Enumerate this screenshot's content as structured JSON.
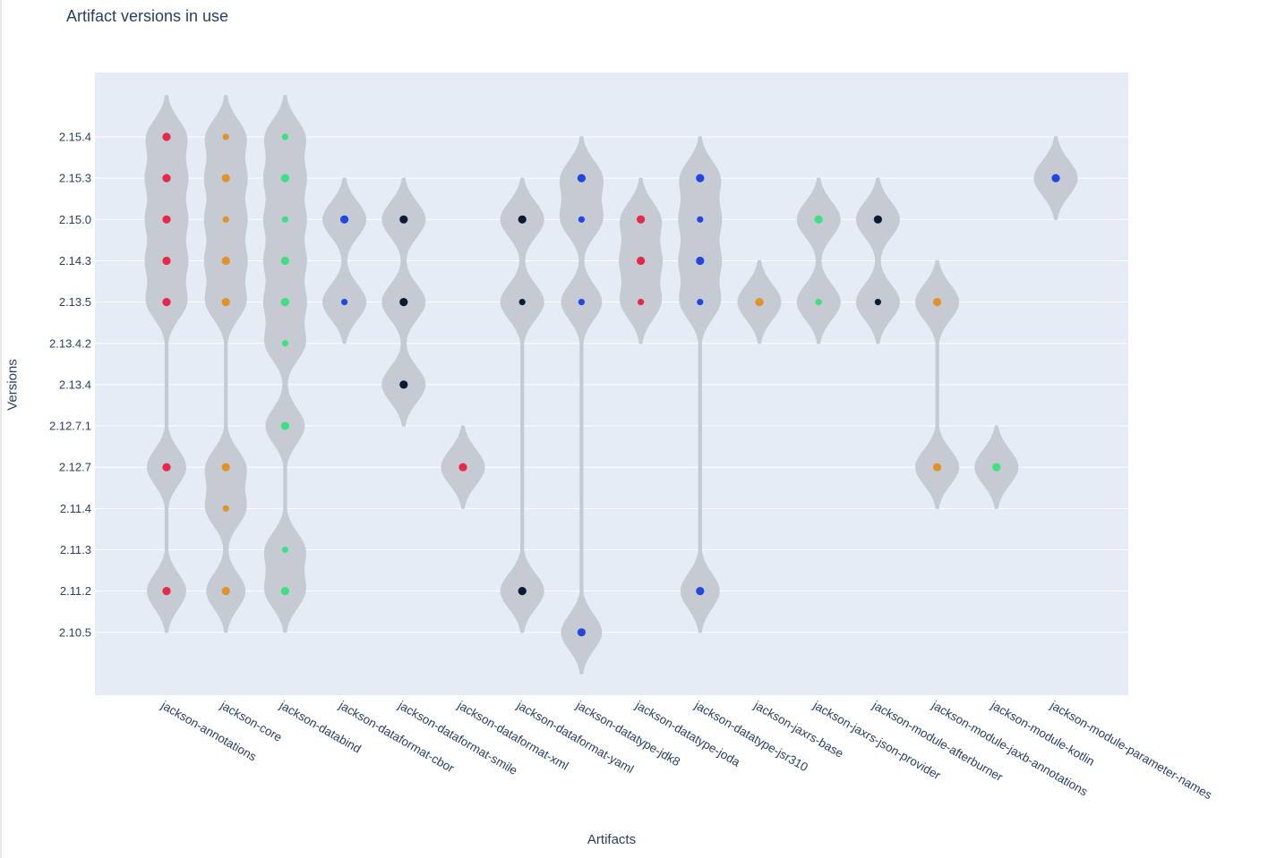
{
  "chart_data": {
    "type": "violin",
    "title": "Artifact versions in use",
    "xlabel": "Artifacts",
    "ylabel": "Versions",
    "y_categories": [
      "2.10.5",
      "2.11.2",
      "2.11.3",
      "2.11.4",
      "2.12.7",
      "2.12.7.1",
      "2.13.4",
      "2.13.4.2",
      "2.13.5",
      "2.14.3",
      "2.15.0",
      "2.15.3",
      "2.15.4"
    ],
    "grid": true,
    "colors": {
      "plot_bg": "#e5ecf6",
      "violin_fill": "#c5cad3",
      "gridline": "#ffffff",
      "text": "#2a3f5f",
      "red": "#e8274a",
      "orange": "#e0932a",
      "green": "#3ee082",
      "blue": "#2346e0",
      "navy": "#0c1b33"
    },
    "series": [
      {
        "category": "jackson-annotations",
        "color": "red",
        "points": [
          {
            "y": "2.15.4",
            "big": true
          },
          {
            "y": "2.15.3",
            "big": true
          },
          {
            "y": "2.15.0",
            "big": true
          },
          {
            "y": "2.14.3",
            "big": true
          },
          {
            "y": "2.13.5",
            "big": true
          },
          {
            "y": "2.12.7",
            "big": true
          },
          {
            "y": "2.11.2",
            "big": true
          }
        ]
      },
      {
        "category": "jackson-core",
        "color": "orange",
        "points": [
          {
            "y": "2.15.4",
            "big": false
          },
          {
            "y": "2.15.3",
            "big": true
          },
          {
            "y": "2.15.0",
            "big": false
          },
          {
            "y": "2.14.3",
            "big": true
          },
          {
            "y": "2.13.5",
            "big": true
          },
          {
            "y": "2.12.7",
            "big": true
          },
          {
            "y": "2.11.4",
            "big": false
          },
          {
            "y": "2.11.2",
            "big": true
          }
        ]
      },
      {
        "category": "jackson-databind",
        "color": "green",
        "points": [
          {
            "y": "2.15.4",
            "big": false
          },
          {
            "y": "2.15.3",
            "big": true
          },
          {
            "y": "2.15.0",
            "big": false
          },
          {
            "y": "2.14.3",
            "big": true
          },
          {
            "y": "2.13.5",
            "big": true
          },
          {
            "y": "2.13.4.2",
            "big": false
          },
          {
            "y": "2.12.7.1",
            "big": true
          },
          {
            "y": "2.11.3",
            "big": false
          },
          {
            "y": "2.11.2",
            "big": true
          }
        ]
      },
      {
        "category": "jackson-dataformat-cbor",
        "color": "blue",
        "points": [
          {
            "y": "2.15.0",
            "big": true
          },
          {
            "y": "2.13.5",
            "big": false
          }
        ]
      },
      {
        "category": "jackson-dataformat-smile",
        "color": "navy",
        "points": [
          {
            "y": "2.15.0",
            "big": true
          },
          {
            "y": "2.13.5",
            "big": true
          },
          {
            "y": "2.13.4",
            "big": true
          }
        ]
      },
      {
        "category": "jackson-dataformat-xml",
        "color": "red",
        "points": [
          {
            "y": "2.12.7",
            "big": true
          }
        ]
      },
      {
        "category": "jackson-dataformat-yaml",
        "color": "navy",
        "points": [
          {
            "y": "2.15.0",
            "big": true
          },
          {
            "y": "2.13.5",
            "big": false
          },
          {
            "y": "2.11.2",
            "big": true
          }
        ]
      },
      {
        "category": "jackson-datatype-jdk8",
        "color": "blue",
        "points": [
          {
            "y": "2.15.3",
            "big": true
          },
          {
            "y": "2.15.0",
            "big": false
          },
          {
            "y": "2.13.5",
            "big": false
          },
          {
            "y": "2.10.5",
            "big": true
          }
        ]
      },
      {
        "category": "jackson-datatype-joda",
        "color": "red",
        "points": [
          {
            "y": "2.15.0",
            "big": true
          },
          {
            "y": "2.14.3",
            "big": true
          },
          {
            "y": "2.13.5",
            "big": false
          }
        ]
      },
      {
        "category": "jackson-datatype-jsr310",
        "color": "blue",
        "points": [
          {
            "y": "2.15.3",
            "big": true
          },
          {
            "y": "2.15.0",
            "big": false
          },
          {
            "y": "2.14.3",
            "big": true
          },
          {
            "y": "2.13.5",
            "big": false
          },
          {
            "y": "2.11.2",
            "big": true
          }
        ]
      },
      {
        "category": "jackson-jaxrs-base",
        "color": "orange",
        "points": [
          {
            "y": "2.13.5",
            "big": true
          }
        ]
      },
      {
        "category": "jackson-jaxrs-json-provider",
        "color": "green",
        "points": [
          {
            "y": "2.15.0",
            "big": true
          },
          {
            "y": "2.13.5",
            "big": false
          }
        ]
      },
      {
        "category": "jackson-module-afterburner",
        "color": "navy",
        "points": [
          {
            "y": "2.15.0",
            "big": true
          },
          {
            "y": "2.13.5",
            "big": false
          }
        ]
      },
      {
        "category": "jackson-module-jaxb-annotations",
        "color": "orange",
        "points": [
          {
            "y": "2.13.5",
            "big": true
          },
          {
            "y": "2.12.7",
            "big": true
          }
        ]
      },
      {
        "category": "jackson-module-kotlin",
        "color": "green",
        "points": [
          {
            "y": "2.12.7",
            "big": true
          }
        ]
      },
      {
        "category": "jackson-module-parameter-names",
        "color": "blue",
        "points": [
          {
            "y": "2.15.3",
            "big": true
          }
        ]
      }
    ]
  }
}
